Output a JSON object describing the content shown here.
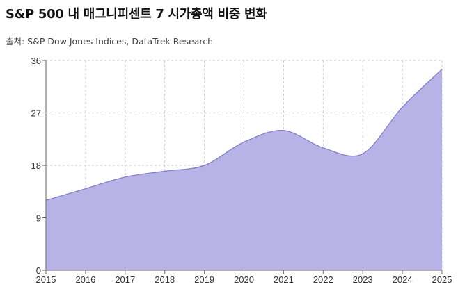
{
  "header": {
    "title": "S&P 500 내 매그니피센트 7 시가총액 비중 변화",
    "source": "출처: S&P Dow Jones Indices, DataTrek Research"
  },
  "chart_data": {
    "type": "area",
    "title": "S&P 500 내 매그니피센트 7 시가총액 비중 변화",
    "xlabel": "",
    "ylabel": "",
    "x": [
      2015,
      2016,
      2017,
      2018,
      2019,
      2020,
      2021,
      2022,
      2023,
      2024,
      2025
    ],
    "values": [
      12,
      14,
      16,
      17,
      18,
      22,
      24,
      21,
      20,
      28,
      34.5
    ],
    "ylim": [
      0,
      36
    ],
    "yticks": [
      0,
      9,
      18,
      27,
      36
    ],
    "xtick_labels": [
      "2015",
      "2016",
      "2017",
      "2018",
      "2019",
      "2020",
      "2021",
      "2022",
      "2023",
      "2024",
      "2025"
    ],
    "ytick_labels": [
      "0",
      "9",
      "18",
      "27",
      "36"
    ],
    "grid": true,
    "fill_color": "#b7b3e6",
    "line_color": "#7e78c4",
    "grid_color": "#cccccc"
  }
}
